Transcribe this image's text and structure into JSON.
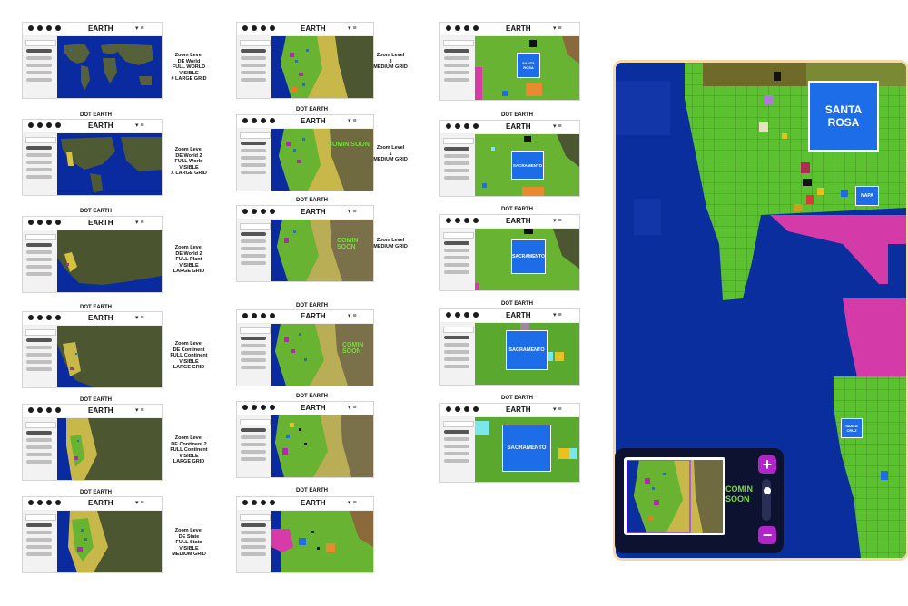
{
  "app": {
    "logo": "EARTH",
    "overview_title": "DOT EARTH"
  },
  "frames": [
    {
      "id": "c1r1",
      "caption": [
        "Zoom Level",
        "DE World",
        "FULL WORLD",
        "VISIBLE",
        "# LARGE GRID"
      ]
    },
    {
      "id": "c1r2",
      "title": "DOT EARTH",
      "caption": [
        "Zoom Level",
        "DE World 2",
        "FULL World",
        "VISIBLE",
        "X LARGE GRID"
      ]
    },
    {
      "id": "c1r3",
      "title": "DOT EARTH",
      "caption": [
        "Zoom Level",
        "DE World 2",
        "FULL Plant",
        "VISIBLE",
        "LARGE GRID"
      ]
    },
    {
      "id": "c1r4",
      "title": "DOT EARTH",
      "caption": [
        "Zoom Level",
        "DE Continent",
        "FULL Continent",
        "VISIBLE",
        "LARGE GRID"
      ]
    },
    {
      "id": "c1r5",
      "title": "DOT EARTH",
      "caption": [
        "Zoom Level",
        "DE Continent 2",
        "FULL Continent",
        "VISIBLE",
        "LARGE GRID"
      ]
    },
    {
      "id": "c1r6",
      "title": "DOT EARTH",
      "caption": [
        "Zoom Level",
        "DE State",
        "FULL State",
        "VISIBLE",
        "MEDIUM GRID"
      ]
    },
    {
      "id": "c2r1",
      "caption": [
        "Zoom Level",
        "3",
        "MEDIUM GRID"
      ]
    },
    {
      "id": "c2r2",
      "title": "DOT EARTH",
      "caption": [
        "Zoom Level",
        "1",
        "MEDIUM GRID"
      ],
      "overlay": "COMIN SOON"
    },
    {
      "id": "c2r3",
      "title": "DOT EARTH",
      "caption": [
        "Zoom Level",
        "",
        "MEDIUM GRID"
      ],
      "overlay": "COMIN SOON"
    },
    {
      "id": "c2r4",
      "title": "DOT EARTH",
      "overlay": "COMIN SOON"
    },
    {
      "id": "c2r5",
      "title": "DOT EARTH"
    },
    {
      "id": "c2r6",
      "title": "DOT EARTH"
    },
    {
      "id": "c3r1",
      "city": "SANTA ROSA"
    },
    {
      "id": "c3r2",
      "title": "DOT EARTH",
      "city": "SACRAMENTO"
    },
    {
      "id": "c3r3",
      "title": "DOT EARTH",
      "city": "SACRAMENTO"
    },
    {
      "id": "c3r4",
      "title": "DOT EARTH",
      "city": "SACRAMENTO"
    },
    {
      "id": "c3r5",
      "title": "DOT EARTH",
      "city": "SACRAMENTO"
    }
  ],
  "detail": {
    "city_main": "SANTA ROSA",
    "city_small": "NAPA",
    "city_tiny": "SANTA CRUZ"
  },
  "minimap": {
    "overlay": "COMIN SOON"
  },
  "zoom": {
    "in": "+",
    "out": "−"
  }
}
